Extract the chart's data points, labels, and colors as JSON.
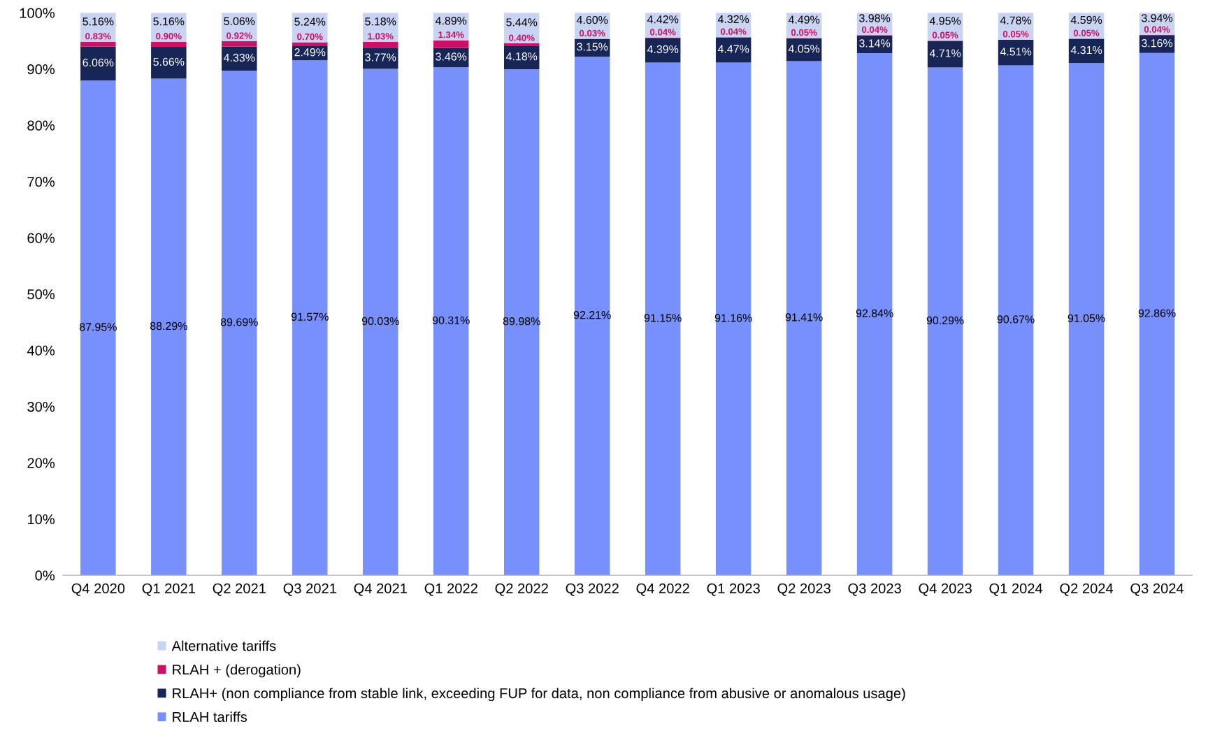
{
  "chart_data": {
    "type": "bar",
    "stacked": true,
    "categories": [
      "Q4 2020",
      "Q1 2021",
      "Q2 2021",
      "Q3 2021",
      "Q4 2021",
      "Q1 2022",
      "Q2 2022",
      "Q3 2022",
      "Q4 2022",
      "Q1 2023",
      "Q2 2023",
      "Q3 2023",
      "Q4 2023",
      "Q1 2024",
      "Q2 2024",
      "Q3 2024"
    ],
    "series": [
      {
        "name": "RLAH tariffs",
        "color": "#7890fc",
        "values": [
          87.95,
          88.29,
          89.69,
          91.57,
          90.03,
          90.31,
          89.98,
          92.21,
          91.15,
          91.16,
          91.41,
          92.84,
          90.29,
          90.67,
          91.05,
          92.86
        ],
        "value_labels": [
          "87.95%",
          "88.29%",
          "89.69%",
          "91.57%",
          "90.03%",
          "90.31%",
          "89.98%",
          "92.21%",
          "91.15%",
          "91.16%",
          "91.41%",
          "92.84%",
          "90.29%",
          "90.67%",
          "91.05%",
          "92.86%"
        ]
      },
      {
        "name": "RLAH+ (non compliance from stable link, exceeding FUP for data, non compliance from abusive or anomalous usage)",
        "color": "#172557",
        "values": [
          6.06,
          5.66,
          4.33,
          2.49,
          3.77,
          3.46,
          4.18,
          3.15,
          4.39,
          4.47,
          4.05,
          3.14,
          4.71,
          4.51,
          4.31,
          3.16
        ],
        "value_labels": [
          "6.06%",
          "5.66%",
          "4.33%",
          "2.49%",
          "3.77%",
          "3.46%",
          "4.18%",
          "3.15%",
          "4.39%",
          "4.47%",
          "4.05%",
          "3.14%",
          "4.71%",
          "4.51%",
          "4.31%",
          "3.16%"
        ]
      },
      {
        "name": "RLAH + (derogation)",
        "color": "#cc1166",
        "values": [
          0.83,
          0.9,
          0.92,
          0.7,
          1.03,
          1.34,
          0.4,
          0.03,
          0.04,
          0.04,
          0.05,
          0.04,
          0.05,
          0.05,
          0.05,
          0.04
        ],
        "value_labels": [
          "0.83%",
          "0.90%",
          "0.92%",
          "0.70%",
          "1.03%",
          "1.34%",
          "0.40%",
          "0.03%",
          "0.04%",
          "0.04%",
          "0.05%",
          "0.04%",
          "0.05%",
          "0.05%",
          "0.05%",
          "0.04%"
        ]
      },
      {
        "name": "Alternative tariffs",
        "color": "#c9d3f2",
        "values": [
          5.16,
          5.16,
          5.06,
          5.24,
          5.18,
          4.89,
          5.44,
          4.6,
          4.42,
          4.32,
          4.49,
          3.98,
          4.95,
          4.78,
          4.59,
          3.94
        ],
        "value_labels": [
          "5.16%",
          "5.16%",
          "5.06%",
          "5.24%",
          "5.18%",
          "4.89%",
          "5.44%",
          "4.60%",
          "4.42%",
          "4.32%",
          "4.49%",
          "3.98%",
          "4.95%",
          "4.78%",
          "4.59%",
          "3.94%"
        ]
      }
    ],
    "ylim": [
      0,
      100
    ],
    "yticks": [
      {
        "value": 0,
        "label": "0%"
      },
      {
        "value": 10,
        "label": "10%"
      },
      {
        "value": 20,
        "label": "20%"
      },
      {
        "value": 30,
        "label": "30%"
      },
      {
        "value": 40,
        "label": "40%"
      },
      {
        "value": 50,
        "label": "50%"
      },
      {
        "value": 60,
        "label": "60%"
      },
      {
        "value": 70,
        "label": "70%"
      },
      {
        "value": 80,
        "label": "80%"
      },
      {
        "value": 90,
        "label": "90%"
      },
      {
        "value": 100,
        "label": "100%"
      }
    ],
    "grid": false,
    "legend": "bottom"
  }
}
